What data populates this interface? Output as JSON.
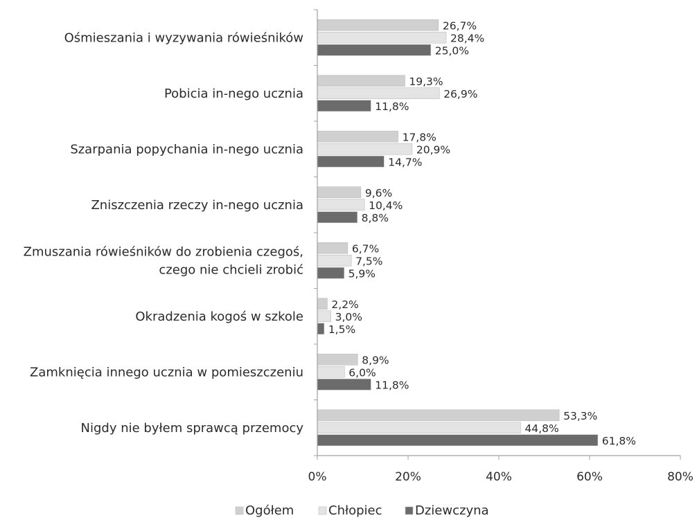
{
  "chart_data": {
    "type": "bar",
    "orientation": "horizontal",
    "categories": [
      [
        "Ośmieszania i wyzywania rówieśników"
      ],
      [
        "Pobicia in-nego ucznia"
      ],
      [
        "Szarpania popychania in-nego ucznia"
      ],
      [
        "Zniszczenia rzeczy in-nego ucznia"
      ],
      [
        "Zmuszania rówieśników do zrobienia czegoś,",
        "czego nie chcieli zrobić"
      ],
      [
        "Okradzenia kogoś w szkole"
      ],
      [
        "Zamknięcia innego ucznia w pomieszczeniu"
      ],
      [
        "Nigdy nie byłem sprawcą przemocy"
      ]
    ],
    "series": [
      {
        "name": "Ogółem",
        "color": "#d0d0d0",
        "values": [
          26.7,
          19.3,
          17.8,
          9.6,
          6.7,
          2.2,
          8.9,
          53.3
        ],
        "labels": [
          "26,7%",
          "19,3%",
          "17,8%",
          "9,6%",
          "6,7%",
          "2,2%",
          "8,9%",
          "53,3%"
        ]
      },
      {
        "name": "Chłopiec",
        "color": "#e4e4e4",
        "values": [
          28.4,
          26.9,
          20.9,
          10.4,
          7.5,
          3.0,
          6.0,
          44.8
        ],
        "labels": [
          "28,4%",
          "26,9%",
          "20,9%",
          "10,4%",
          "7,5%",
          "3,0%",
          "6,0%",
          "44,8%"
        ]
      },
      {
        "name": "Dziewczyna",
        "color": "#6b6b6b",
        "values": [
          25.0,
          11.8,
          14.7,
          8.8,
          5.9,
          1.5,
          11.8,
          61.8
        ],
        "labels": [
          "25,0%",
          "11,8%",
          "14,7%",
          "8,8%",
          "5,9%",
          "1,5%",
          "11,8%",
          "61,8%"
        ]
      }
    ],
    "x_ticks": [
      "0%",
      "20%",
      "40%",
      "60%",
      "80%"
    ],
    "xlim": [
      0,
      80
    ],
    "title": "",
    "xlabel": "",
    "ylabel": "",
    "grid": false,
    "legend_position": "bottom"
  }
}
